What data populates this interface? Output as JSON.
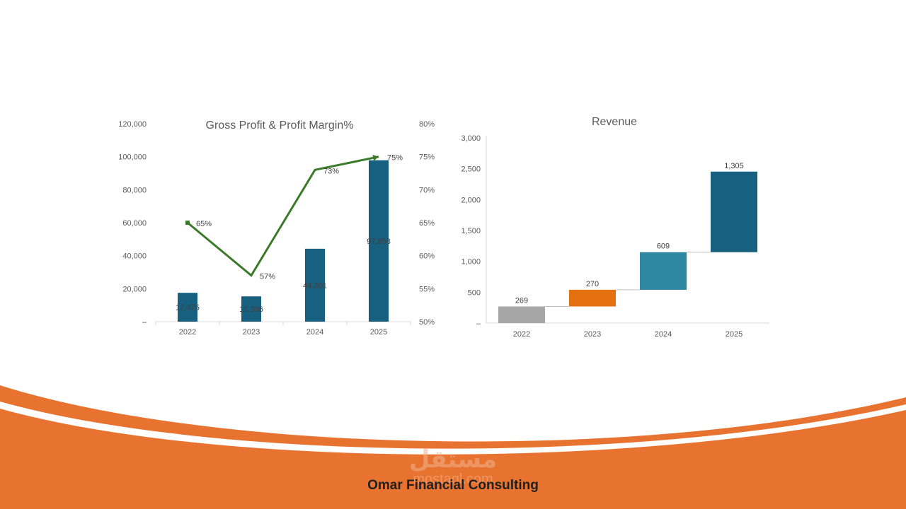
{
  "colors": {
    "accent_orange": "#e87330",
    "bar_navy": "#17607f",
    "margin_line": "#3a7a2a",
    "waterfall_gray": "#a6a6a6",
    "waterfall_orange": "#e4700f",
    "waterfall_teal": "#2e87a0",
    "waterfall_navy": "#17607f"
  },
  "footer": {
    "company_name": "Omar Financial Consulting",
    "watermark_arabic": "مستقل",
    "watermark_latin": "mostaql.com"
  },
  "chart_data": [
    {
      "type": "bar",
      "title": "Gross Profit & Profit Margin%",
      "categories": [
        "2022",
        "2023",
        "2024",
        "2025"
      ],
      "series": [
        {
          "values": [
            17475,
            15336,
            44201,
            97858
          ],
          "labels": [
            "17,475",
            "15,336",
            "44,201",
            "97,858"
          ],
          "axis": "left",
          "kind": "bar"
        },
        {
          "values": [
            65,
            57,
            73,
            75
          ],
          "labels": [
            "65%",
            "57%",
            "73%",
            "75%"
          ],
          "axis": "right",
          "kind": "line"
        }
      ],
      "ylim": [
        0,
        120000
      ],
      "yticks": [
        "–",
        "20,000",
        "40,000",
        "60,000",
        "80,000",
        "100,000",
        "120,000"
      ],
      "y2lim": [
        50,
        80
      ],
      "y2ticks": [
        "50%",
        "55%",
        "60%",
        "65%",
        "70%",
        "75%",
        "80%"
      ],
      "grid": false
    },
    {
      "type": "bar",
      "subtype": "waterfall",
      "title": "Revenue",
      "categories": [
        "2022",
        "2023",
        "2024",
        "2025"
      ],
      "values": [
        269,
        270,
        609,
        1305
      ],
      "labels": [
        "269",
        "270",
        "609",
        "1,305"
      ],
      "ylim": [
        0,
        3000
      ],
      "yticks": [
        "–",
        "500",
        "1,000",
        "1,500",
        "2,000",
        "2,500",
        "3,000"
      ],
      "grid": false
    }
  ]
}
